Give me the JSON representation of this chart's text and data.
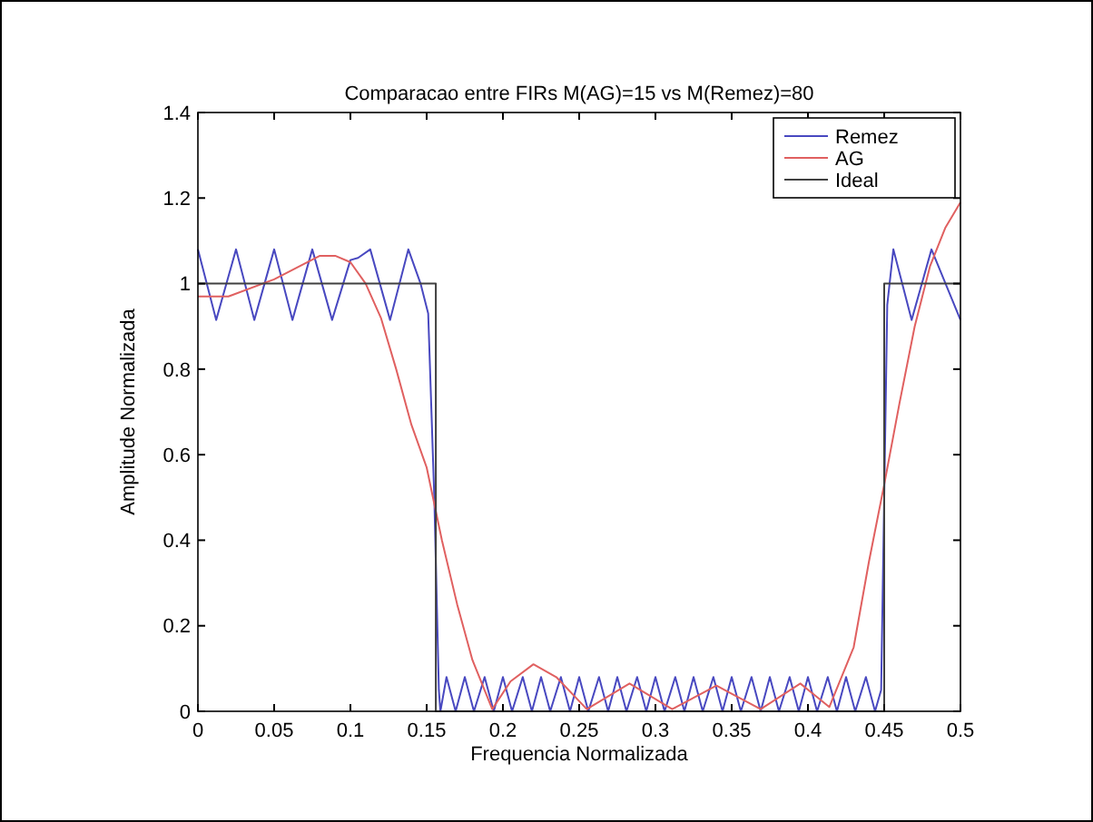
{
  "chart_data": {
    "type": "line",
    "title": "Comparacao entre FIRs M(AG)=15 vs M(Remez)=80",
    "xlabel": "Frequencia Normalizada",
    "ylabel": "Amplitude Normalizada",
    "xlim": [
      0,
      0.5
    ],
    "ylim": [
      0,
      1.4
    ],
    "xticks": [
      0,
      0.05,
      0.1,
      0.15,
      0.2,
      0.25,
      0.3,
      0.35,
      0.4,
      0.45,
      0.5
    ],
    "yticks": [
      0,
      0.2,
      0.4,
      0.6,
      0.8,
      1,
      1.2,
      1.4
    ],
    "grid": false,
    "legend": "top right",
    "line_style": "solid",
    "marker": "none",
    "series": [
      {
        "name": "Remez",
        "color": "#4848c0",
        "x": [
          0,
          0.012,
          0.025,
          0.037,
          0.05,
          0.062,
          0.075,
          0.088,
          0.1,
          0.105,
          0.113,
          0.126,
          0.138,
          0.146,
          0.151,
          0.155,
          0.158,
          0.159,
          0.163,
          0.169,
          0.175,
          0.181,
          0.188,
          0.194,
          0.2,
          0.206,
          0.213,
          0.219,
          0.225,
          0.231,
          0.238,
          0.244,
          0.25,
          0.256,
          0.263,
          0.269,
          0.275,
          0.281,
          0.288,
          0.294,
          0.3,
          0.306,
          0.313,
          0.319,
          0.325,
          0.331,
          0.338,
          0.344,
          0.35,
          0.356,
          0.363,
          0.369,
          0.375,
          0.381,
          0.388,
          0.394,
          0.4,
          0.406,
          0.413,
          0.419,
          0.425,
          0.431,
          0.438,
          0.444,
          0.448,
          0.45,
          0.452,
          0.456,
          0.468,
          0.481,
          0.5
        ],
        "values": [
          1.08,
          0.915,
          1.08,
          0.915,
          1.08,
          0.915,
          1.08,
          0.915,
          1.055,
          1.06,
          1.08,
          0.915,
          1.08,
          1.0,
          0.93,
          0.5,
          0.05,
          0,
          0.08,
          0,
          0.08,
          0,
          0.08,
          0,
          0.08,
          0,
          0.08,
          0,
          0.08,
          0,
          0.08,
          0,
          0.08,
          0,
          0.08,
          0,
          0.08,
          0,
          0.08,
          0,
          0.08,
          0,
          0.08,
          0,
          0.08,
          0,
          0.08,
          0,
          0.08,
          0,
          0.08,
          0,
          0.08,
          0,
          0.08,
          0,
          0.08,
          0,
          0.08,
          0,
          0.08,
          0,
          0.08,
          0,
          0.05,
          0.5,
          0.95,
          1.08,
          0.915,
          1.08,
          0.915
        ]
      },
      {
        "name": "AG",
        "color": "#e06060",
        "x": [
          0,
          0.02,
          0.05,
          0.08,
          0.09,
          0.1,
          0.11,
          0.12,
          0.13,
          0.14,
          0.15,
          0.16,
          0.17,
          0.18,
          0.193,
          0.205,
          0.22,
          0.235,
          0.255,
          0.283,
          0.311,
          0.34,
          0.369,
          0.395,
          0.414,
          0.43,
          0.44,
          0.45,
          0.46,
          0.47,
          0.48,
          0.49,
          0.5
        ],
        "values": [
          0.97,
          0.97,
          1.01,
          1.065,
          1.065,
          1.05,
          1.0,
          0.92,
          0.8,
          0.67,
          0.57,
          0.4,
          0.25,
          0.12,
          0.005,
          0.07,
          0.11,
          0.08,
          0.005,
          0.065,
          0.005,
          0.06,
          0.005,
          0.065,
          0.01,
          0.15,
          0.35,
          0.53,
          0.72,
          0.9,
          1.04,
          1.13,
          1.19
        ]
      },
      {
        "name": "Ideal",
        "color": "#404040",
        "x": [
          0,
          0.156,
          0.156,
          0.45,
          0.45,
          0.5
        ],
        "values": [
          1,
          1,
          0,
          0,
          1,
          1
        ]
      }
    ]
  }
}
